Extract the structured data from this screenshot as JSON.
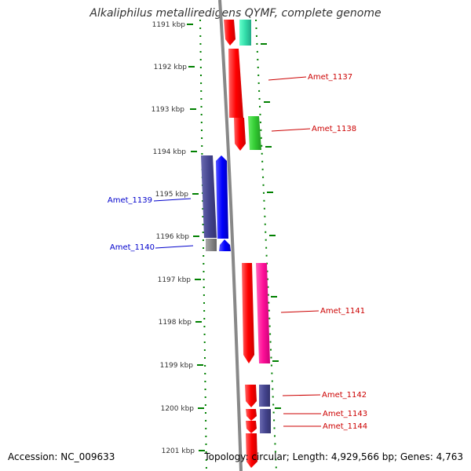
{
  "title": "Alkaliphilus metalliredigens QYMF, complete genome",
  "footer": {
    "accession": "Accession: NC_009633",
    "topology": "Topology: circular; Length: 4,929,566 bp; Genes: 4,763"
  },
  "ticks": [
    "1191 kbp",
    "1192 kbp",
    "1193 kbp",
    "1194 kbp",
    "1195 kbp",
    "1196 kbp",
    "1197 kbp",
    "1198 kbp",
    "1199 kbp",
    "1200 kbp",
    "1201 kbp"
  ],
  "genes": [
    {
      "label": "Amet_1137",
      "color": "#cc0000"
    },
    {
      "label": "Amet_1138",
      "color": "#cc0000"
    },
    {
      "label": "Amet_1139",
      "color": "#0000cc"
    },
    {
      "label": "Amet_1140",
      "color": "#0000cc"
    },
    {
      "label": "Amet_1141",
      "color": "#cc0000"
    },
    {
      "label": "Amet_1142",
      "color": "#cc0000"
    },
    {
      "label": "Amet_1143",
      "color": "#cc0000"
    },
    {
      "label": "Amet_1144",
      "color": "#cc0000"
    }
  ],
  "colors": {
    "forward_strand": "#ff0000",
    "reverse_strand": "#0000ff",
    "cog_green": "#33cc33",
    "cog_teal": "#33ddaa",
    "cog_navy": "#4a4a99",
    "cog_grey": "#888888",
    "cog_magenta": "#ff1199",
    "tick_color": "#008000",
    "backbone": "#888888"
  }
}
